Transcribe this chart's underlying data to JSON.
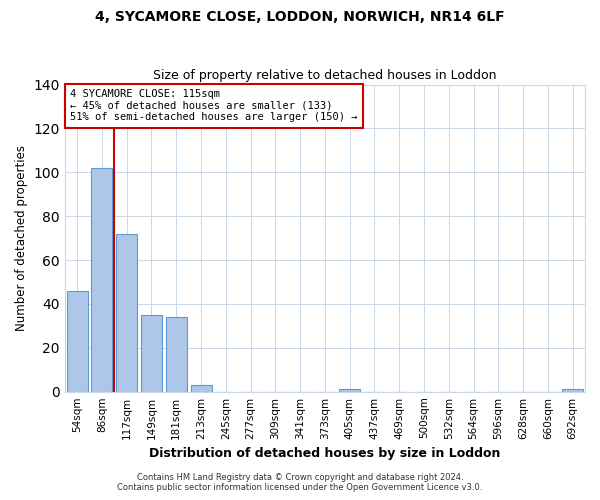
{
  "title": "4, SYCAMORE CLOSE, LODDON, NORWICH, NR14 6LF",
  "subtitle": "Size of property relative to detached houses in Loddon",
  "xlabel": "Distribution of detached houses by size in Loddon",
  "ylabel": "Number of detached properties",
  "bin_labels": [
    "54sqm",
    "86sqm",
    "117sqm",
    "149sqm",
    "181sqm",
    "213sqm",
    "245sqm",
    "277sqm",
    "309sqm",
    "341sqm",
    "373sqm",
    "405sqm",
    "437sqm",
    "469sqm",
    "500sqm",
    "532sqm",
    "564sqm",
    "596sqm",
    "628sqm",
    "660sqm",
    "692sqm"
  ],
  "bar_values": [
    46,
    102,
    72,
    35,
    34,
    3,
    0,
    0,
    0,
    0,
    0,
    1,
    0,
    0,
    0,
    0,
    0,
    0,
    0,
    0,
    1
  ],
  "bar_color": "#aec6e8",
  "bar_edgecolor": "#5b9bd5",
  "ylim": [
    0,
    140
  ],
  "yticks": [
    0,
    20,
    40,
    60,
    80,
    100,
    120,
    140
  ],
  "annotation_title": "4 SYCAMORE CLOSE: 115sqm",
  "annotation_line1": "← 45% of detached houses are smaller (133)",
  "annotation_line2": "51% of semi-detached houses are larger (150) →",
  "annotation_box_edgecolor": "#cc0000",
  "annotation_box_facecolor": "#ffffff",
  "vline_color": "#cc0000",
  "vline_x": 1.5,
  "footer1": "Contains HM Land Registry data © Crown copyright and database right 2024.",
  "footer2": "Contains public sector information licensed under the Open Government Licence v3.0.",
  "background_color": "#ffffff",
  "grid_color": "#c8d8e8"
}
